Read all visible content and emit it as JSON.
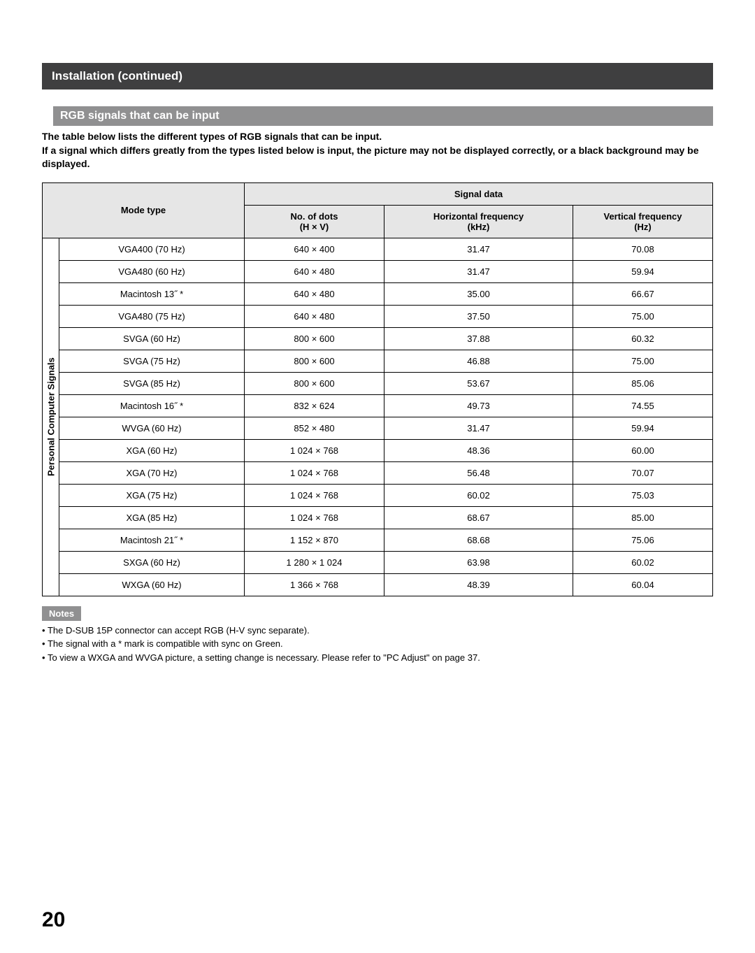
{
  "header": "Installation (continued)",
  "subheader": "RGB signals that can be input",
  "intro": "The table below lists the different types of RGB signals that can be input.\nIf a signal which differs greatly from the types listed below is input, the picture may not be displayed correctly, or a black background may be displayed.",
  "table": {
    "vertical_label": "Personal Computer Signals",
    "header_mode": "Mode type",
    "header_signal": "Signal data",
    "header_dots": "No. of dots\n(H × V)",
    "header_hfreq": "Horizontal frequency\n(kHz)",
    "header_vfreq": "Vertical frequency\n(Hz)",
    "rows": [
      {
        "mode": "VGA400 (70 Hz)",
        "dots": "640 × 400",
        "h": "31.47",
        "v": "70.08"
      },
      {
        "mode": "VGA480 (60 Hz)",
        "dots": "640 × 480",
        "h": "31.47",
        "v": "59.94"
      },
      {
        "mode": "Macintosh 13˝ *",
        "dots": "640 × 480",
        "h": "35.00",
        "v": "66.67"
      },
      {
        "mode": "VGA480 (75 Hz)",
        "dots": "640 × 480",
        "h": "37.50",
        "v": "75.00"
      },
      {
        "mode": "SVGA (60 Hz)",
        "dots": "800 × 600",
        "h": "37.88",
        "v": "60.32"
      },
      {
        "mode": "SVGA (75 Hz)",
        "dots": "800 × 600",
        "h": "46.88",
        "v": "75.00"
      },
      {
        "mode": "SVGA (85 Hz)",
        "dots": "800 × 600",
        "h": "53.67",
        "v": "85.06"
      },
      {
        "mode": "Macintosh 16˝ *",
        "dots": "832 × 624",
        "h": "49.73",
        "v": "74.55"
      },
      {
        "mode": "WVGA (60 Hz)",
        "dots": "852 × 480",
        "h": "31.47",
        "v": "59.94"
      },
      {
        "mode": "XGA (60 Hz)",
        "dots": "1 024 × 768",
        "h": "48.36",
        "v": "60.00"
      },
      {
        "mode": "XGA (70 Hz)",
        "dots": "1 024 × 768",
        "h": "56.48",
        "v": "70.07"
      },
      {
        "mode": "XGA (75 Hz)",
        "dots": "1 024 × 768",
        "h": "60.02",
        "v": "75.03"
      },
      {
        "mode": "XGA (85 Hz)",
        "dots": "1 024 × 768",
        "h": "68.67",
        "v": "85.00"
      },
      {
        "mode": "Macintosh 21˝ *",
        "dots": "1 152 × 870",
        "h": "68.68",
        "v": "75.06"
      },
      {
        "mode": "SXGA (60 Hz)",
        "dots": "1 280 × 1 024",
        "h": "63.98",
        "v": "60.02"
      },
      {
        "mode": "WXGA (60 Hz)",
        "dots": "1 366 × 768",
        "h": "48.39",
        "v": "60.04"
      }
    ]
  },
  "notes_label": "Notes",
  "notes": [
    "The D-SUB 15P connector can accept RGB (H-V sync separate).",
    "The signal with a * mark is compatible with sync on Green.",
    "To view a WXGA and WVGA picture, a setting change is necessary. Please refer to \"PC Adjust\" on page 37."
  ],
  "page_number": "20"
}
